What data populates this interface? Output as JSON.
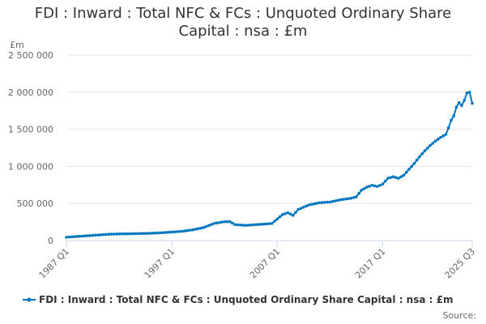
{
  "chart_data": {
    "type": "line",
    "title_line1": "FDI : Inward : Total NFC & FCs : Unquoted Ordinary Share",
    "title_line2": "Capital : nsa : £m",
    "ylabel": "£m",
    "xlabel": "",
    "ylim": [
      0,
      2500000
    ],
    "y_ticks": [
      {
        "value": 0,
        "label": "0"
      },
      {
        "value": 500000,
        "label": "500 000"
      },
      {
        "value": 1000000,
        "label": "1 000 000"
      },
      {
        "value": 1500000,
        "label": "1 500 000"
      },
      {
        "value": 2000000,
        "label": "2 000 000"
      },
      {
        "value": 2500000,
        "label": "2 500 000"
      }
    ],
    "x_ticks": [
      "1987 Q1",
      "1997 Q1",
      "2007 Q1",
      "2017 Q1",
      "2025 Q3"
    ],
    "grid": true,
    "legend_position": "bottom",
    "series_color": "#0076c0",
    "series": [
      {
        "name": "FDI : Inward : Total NFC & FCs : Unquoted Ordinary Share Capital : nsa : £m",
        "points": [
          [
            "1987 Q1",
            45000
          ],
          [
            "1988 Q1",
            55000
          ],
          [
            "1989 Q1",
            65000
          ],
          [
            "1990 Q1",
            75000
          ],
          [
            "1991 Q1",
            85000
          ],
          [
            "1992 Q1",
            90000
          ],
          [
            "1993 Q1",
            92000
          ],
          [
            "1994 Q1",
            95000
          ],
          [
            "1995 Q1",
            98000
          ],
          [
            "1996 Q1",
            105000
          ],
          [
            "1997 Q1",
            115000
          ],
          [
            "1998 Q1",
            125000
          ],
          [
            "1999 Q1",
            145000
          ],
          [
            "2000 Q1",
            175000
          ],
          [
            "2001 Q1",
            230000
          ],
          [
            "2002 Q1",
            255000
          ],
          [
            "2002 Q3",
            255000
          ],
          [
            "2003 Q1",
            215000
          ],
          [
            "2004 Q1",
            205000
          ],
          [
            "2005 Q1",
            215000
          ],
          [
            "2006 Q1",
            225000
          ],
          [
            "2006 Q3",
            230000
          ],
          [
            "2007 Q1",
            290000
          ],
          [
            "2007 Q3",
            350000
          ],
          [
            "2008 Q1",
            375000
          ],
          [
            "2008 Q3",
            340000
          ],
          [
            "2009 Q1",
            420000
          ],
          [
            "2010 Q1",
            480000
          ],
          [
            "2011 Q1",
            510000
          ],
          [
            "2012 Q1",
            520000
          ],
          [
            "2013 Q1",
            550000
          ],
          [
            "2014 Q1",
            570000
          ],
          [
            "2014 Q3",
            590000
          ],
          [
            "2015 Q1",
            680000
          ],
          [
            "2015 Q3",
            720000
          ],
          [
            "2016 Q1",
            745000
          ],
          [
            "2016 Q3",
            730000
          ],
          [
            "2017 Q1",
            760000
          ],
          [
            "2017 Q3",
            840000
          ],
          [
            "2018 Q1",
            860000
          ],
          [
            "2018 Q3",
            840000
          ],
          [
            "2019 Q1",
            880000
          ],
          [
            "2019 Q3",
            960000
          ],
          [
            "2020 Q1",
            1040000
          ],
          [
            "2020 Q3",
            1130000
          ],
          [
            "2021 Q1",
            1210000
          ],
          [
            "2021 Q3",
            1280000
          ],
          [
            "2022 Q1",
            1340000
          ],
          [
            "2022 Q3",
            1390000
          ],
          [
            "2023 Q1",
            1430000
          ],
          [
            "2023 Q2",
            1520000
          ],
          [
            "2023 Q3",
            1620000
          ],
          [
            "2023 Q4",
            1680000
          ],
          [
            "2024 Q1",
            1800000
          ],
          [
            "2024 Q2",
            1860000
          ],
          [
            "2024 Q3",
            1820000
          ],
          [
            "2024 Q4",
            1890000
          ],
          [
            "2025 Q1",
            1990000
          ],
          [
            "2025 Q2",
            2000000
          ],
          [
            "2025 Q3",
            1850000
          ]
        ]
      }
    ],
    "source_label": "Source:"
  }
}
